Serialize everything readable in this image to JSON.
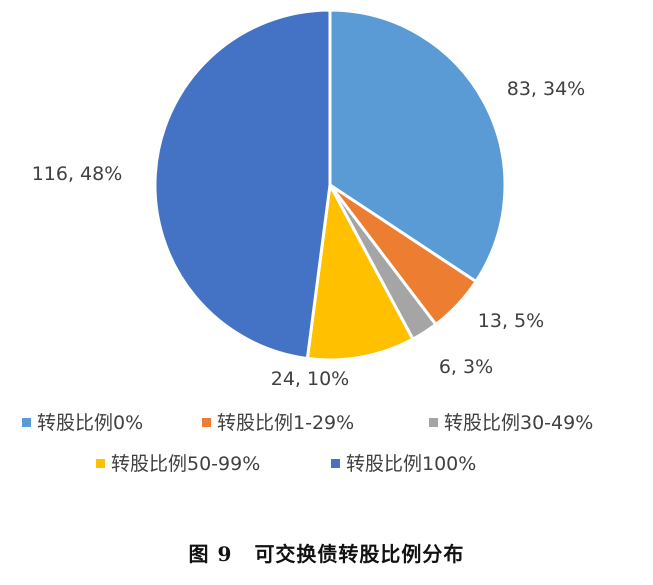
{
  "chart_data": {
    "type": "pie",
    "categories": [
      "转股比例0%",
      "转股比例1-29%",
      "转股比例30-49%",
      "转股比例50-99%",
      "转股比例100%"
    ],
    "values": [
      83,
      13,
      6,
      24,
      116
    ],
    "percent_labels": [
      "34%",
      "5%",
      "3%",
      "10%",
      "48%"
    ],
    "data_labels": [
      "83, 34%",
      "13, 5%",
      "6, 3%",
      "24, 10%",
      "116, 48%"
    ],
    "colors": [
      "#5B9BD5",
      "#ED7D31",
      "#A5A5A5",
      "#FFC000",
      "#4472C4"
    ],
    "start_angle": "12 o'clock",
    "direction": "clockwise",
    "legend_position": "bottom"
  },
  "caption": {
    "figure_number": "图 9",
    "title": "可交换债转股比例分布"
  }
}
